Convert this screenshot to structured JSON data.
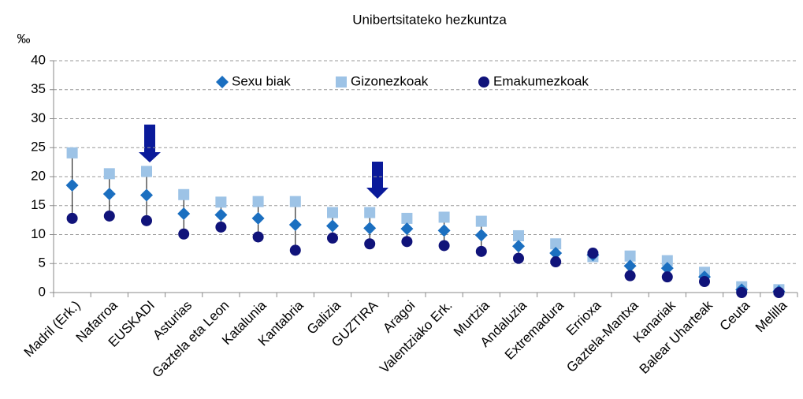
{
  "chart_data": {
    "type": "scatter",
    "title": "Unibertsitateko hezkuntza",
    "y_label": "‰",
    "categories": [
      "Madril (Erk.)",
      "Nafarroa",
      "EUSKADI",
      "Asturias",
      "Gaztela eta Leon",
      "Katalunia",
      "Kantabria",
      "Galizia",
      "GUZTIRA",
      "Aragoi",
      "Valentziako Erk.",
      "Murtzia",
      "Andaluzia",
      "Extremadura",
      "Errioxa",
      "Gaztela-Mantxa",
      "Kanariak",
      "Balear Uharteak",
      "Ceuta",
      "Melilla"
    ],
    "series": [
      {
        "name": "Sexu biak",
        "color": "#1b6fc0",
        "marker": "diamond",
        "values": [
          18.5,
          17,
          16.8,
          13.6,
          13.4,
          12.8,
          11.7,
          11.5,
          11.1,
          11,
          10.7,
          9.9,
          8,
          6.8,
          6.5,
          4.6,
          4.2,
          2.7,
          0.5,
          0.2
        ]
      },
      {
        "name": "Gizonezkoak",
        "color": "#9dc3e6",
        "marker": "square",
        "values": [
          24.1,
          20.5,
          20.9,
          16.9,
          15.6,
          15.7,
          15.7,
          13.8,
          13.8,
          12.8,
          13,
          12.3,
          9.8,
          8.4,
          6.2,
          6.3,
          5.5,
          3.5,
          1,
          0.5
        ]
      },
      {
        "name": "Emakumezkoak",
        "color": "#10137a",
        "marker": "circle",
        "values": [
          12.8,
          13.2,
          12.4,
          10.1,
          11.3,
          9.6,
          7.3,
          9.4,
          8.4,
          8.8,
          8.1,
          7.1,
          5.9,
          5.3,
          6.8,
          2.9,
          2.7,
          1.9,
          0,
          0
        ]
      }
    ],
    "ylim": [
      0,
      40
    ],
    "yticks": [
      0,
      5,
      10,
      15,
      20,
      25,
      30,
      35,
      40
    ],
    "grid": true,
    "legend": "top"
  }
}
